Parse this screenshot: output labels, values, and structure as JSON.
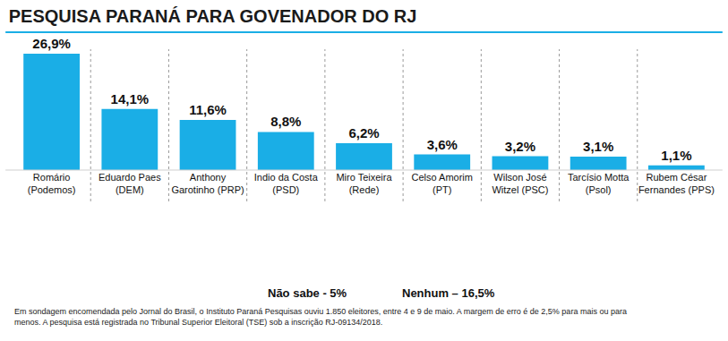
{
  "chart_data": {
    "type": "bar",
    "title": "PESQUISA PARANÁ PARA GOVENADOR DO RJ",
    "categories": [
      "Romário\n(Podemos)",
      "Eduardo Paes\n(DEM)",
      "Anthony\nGarotinho (PRP)",
      "Indio da Costa\n(PSD)",
      "Miro Teixeira\n(Rede)",
      "Celso Amorim\n(PT)",
      "Wilson José\nWitzel (PSC)",
      "Tarcísio Motta\n(Psol)",
      "Rubem César\nFernandes (PPS)"
    ],
    "values": [
      26.9,
      14.1,
      11.6,
      8.8,
      6.2,
      3.6,
      3.2,
      3.1,
      1.1
    ],
    "value_labels": [
      "26,9%",
      "14,1%",
      "11,6%",
      "8,8%",
      "6,2%",
      "3,6%",
      "3,2%",
      "3,1%",
      "1,1%"
    ],
    "color": "#1aaee6",
    "ylim": [
      0,
      30
    ],
    "data_labels": true,
    "tick_labels": "x",
    "grid": false,
    "annotations": [
      "Não sabe - 5%",
      "Nenhum – 16,5%"
    ],
    "footnote": [
      "Em sondagem encomendada pelo Jornal do Brasil, o Instituto Paraná Pesquisas ouviu 1.850 eleitores, entre 4 e 9 de maio. A margem de erro é de 2,5% para mais ou para",
      "menos. A pesquisa está registrada no Tribunal Superior Eleitoral (TSE) sob a inscrição RJ-09134/2018."
    ]
  }
}
